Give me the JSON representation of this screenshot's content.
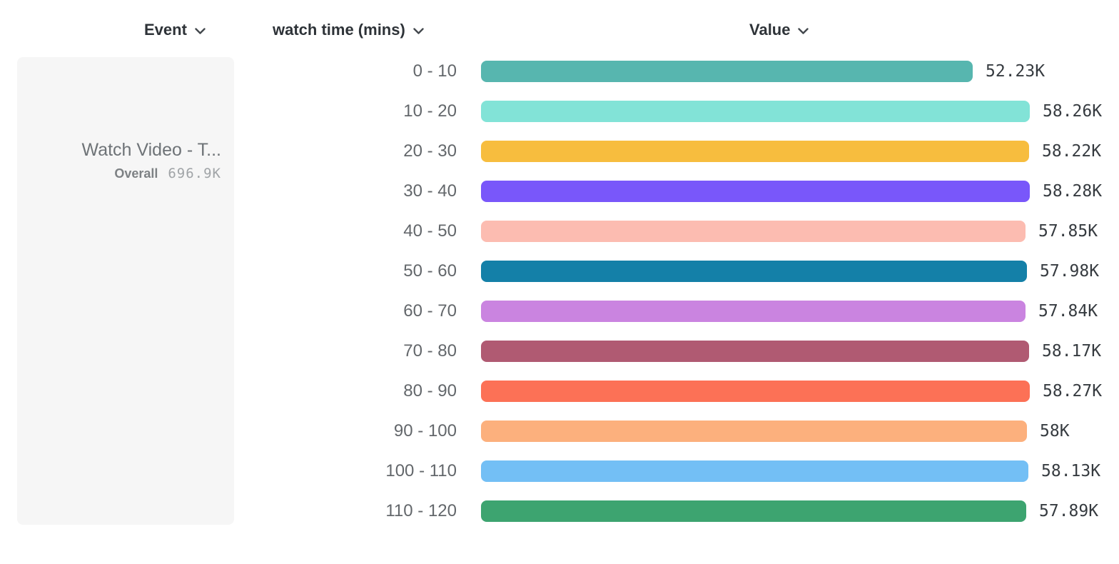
{
  "header": {
    "event_label": "Event",
    "watch_time_label": "watch time (mins)",
    "value_label": "Value"
  },
  "event_card": {
    "title": "Watch Video - T...",
    "overall_label": "Overall",
    "overall_value": "696.9K"
  },
  "chart_data": {
    "type": "bar",
    "orientation": "horizontal",
    "title": "",
    "xlabel": "Value",
    "ylabel": "watch time (mins)",
    "grid": false,
    "legend": false,
    "categories": [
      "0 - 10",
      "10 - 20",
      "20 - 30",
      "30 - 40",
      "40 - 50",
      "50 - 60",
      "60 - 70",
      "70 - 80",
      "80 - 90",
      "90 - 100",
      "100 - 110",
      "110 - 120"
    ],
    "values": [
      52230,
      58260,
      58220,
      58280,
      57850,
      57980,
      57840,
      58170,
      58270,
      58000,
      58130,
      57890
    ],
    "value_labels": [
      "52.23K",
      "58.26K",
      "58.22K",
      "58.28K",
      "57.85K",
      "57.98K",
      "57.84K",
      "58.17K",
      "58.27K",
      "58K",
      "58.13K",
      "57.89K"
    ],
    "colors": [
      "#57b6af",
      "#82e3d7",
      "#f7bd3e",
      "#7957fa",
      "#fcbcb1",
      "#1480a8",
      "#ca84e0",
      "#b05a72",
      "#fc7156",
      "#fcb07d",
      "#73bff5",
      "#3da470"
    ],
    "xlim": [
      0,
      58280
    ]
  },
  "icons": {
    "chevron_down": "chevron-down"
  }
}
